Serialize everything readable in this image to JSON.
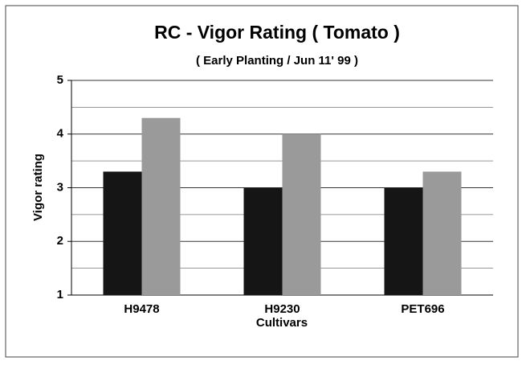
{
  "chart_data": {
    "type": "bar",
    "title": "RC - Vigor Rating ( Tomato )",
    "subtitle": "( Early Planting / Jun 11' 99 )",
    "y_label": "Vigor rating",
    "x_label": "Cultivars",
    "categories": [
      "H9478",
      "H9230",
      "PET696"
    ],
    "series": [
      {
        "color": "#151515",
        "values": [
          3.3,
          3.0,
          3.0
        ]
      },
      {
        "color": "#9a9a9a",
        "values": [
          4.3,
          4.0,
          3.3
        ]
      }
    ],
    "ylim": [
      1,
      5
    ],
    "yticks": [
      1,
      2,
      3,
      4,
      5
    ],
    "minor_yticks": [
      1.5,
      2.5,
      3.5,
      4.5
    ],
    "grid": true
  }
}
